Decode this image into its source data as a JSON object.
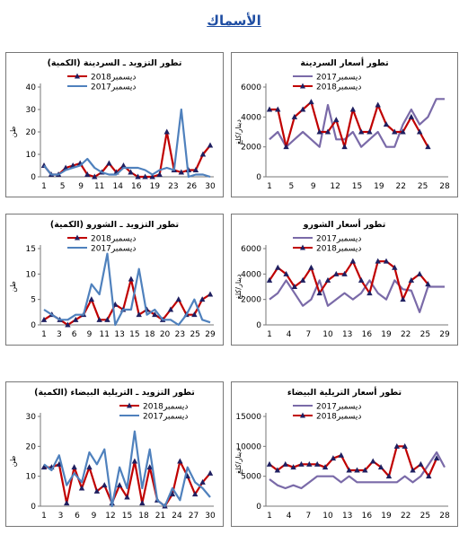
{
  "page": {
    "title": "الأسماك"
  },
  "colors": {
    "s2018": "#c00000",
    "s2017": "#4f81bd",
    "s2017_price": "#7a6aa8",
    "marker2018": "#1f1f60"
  },
  "chart_data": [
    {
      "id": "supply-sardine",
      "type": "line",
      "title": "تطور التزويد ـ السردينة (الكمية)",
      "ylabel": "طن",
      "ylim": [
        0,
        40
      ],
      "yticks": [
        0,
        10,
        20,
        30,
        40
      ],
      "xticks": [
        1,
        4,
        7,
        10,
        13,
        16,
        19,
        22,
        25,
        28
      ],
      "xtick_labels": [
        "1",
        "5",
        "9",
        "11",
        "14",
        "16",
        "19",
        "23",
        "26",
        "30"
      ],
      "legend_position": "top-left",
      "markers_2018": true,
      "series": [
        {
          "name": "ديسمبر2018",
          "key": "s2018",
          "values": [
            5,
            1,
            1,
            4,
            5,
            6,
            1,
            0,
            2,
            6,
            2,
            5,
            2,
            0,
            0,
            0,
            1,
            20,
            3,
            2,
            3,
            3,
            10,
            14
          ]
        },
        {
          "name": "ديسمبر2017",
          "key": "s2017",
          "values": [
            5,
            1,
            1,
            3,
            4,
            5,
            8,
            4,
            2,
            1,
            1,
            4,
            4,
            4,
            3,
            1,
            3,
            4,
            3,
            30,
            0,
            1,
            1,
            0
          ]
        }
      ]
    },
    {
      "id": "price-sardine",
      "type": "line",
      "title": "تطور أسعار السردينة",
      "ylabel": "دينار/كلغ",
      "ylim": [
        0,
        6000
      ],
      "yticks": [
        0,
        2000,
        4000,
        6000
      ],
      "xticks": [
        1,
        3,
        5,
        7,
        9,
        11,
        13,
        15,
        17,
        19,
        21,
        23,
        25
      ],
      "xtick_labels": [
        "1",
        "5",
        "9",
        "12",
        "15",
        "19",
        "22",
        "25",
        "28",
        "",
        "",
        "",
        ""
      ],
      "legend_position": "top-left",
      "markers_2018": true,
      "series": [
        {
          "name": "ديسمبر2017",
          "key": "s2017_price",
          "values": [
            2500,
            3000,
            2000,
            2500,
            3000,
            2500,
            2000,
            4800,
            2500,
            2500,
            3000,
            2000,
            2500,
            3000,
            2000,
            2000,
            3500,
            4500,
            3500,
            4000,
            5200,
            5200
          ]
        },
        {
          "name": "ديسمبر2018",
          "key": "s2018",
          "values": [
            4500,
            4500,
            2000,
            4000,
            4500,
            5000,
            3000,
            3000,
            3800,
            2000,
            4500,
            3000,
            3000,
            4800,
            3500,
            3000,
            3000,
            4000,
            3000,
            2000
          ]
        }
      ]
    },
    {
      "id": "supply-shoura",
      "type": "line",
      "title": "تطور التزويد ـ الشورو (الكمية)",
      "ylabel": "طن",
      "ylim": [
        0,
        15
      ],
      "yticks": [
        0,
        5,
        10,
        15
      ],
      "xticks": [
        1,
        3,
        5,
        7,
        9,
        11,
        13,
        15,
        17,
        19,
        21,
        23
      ],
      "xtick_labels": [
        "1",
        "3",
        "6",
        "9",
        "11",
        "13",
        "15",
        "18",
        "20",
        "23",
        "25",
        "29"
      ],
      "legend_position": "top-left",
      "markers_2018": true,
      "series": [
        {
          "name": "ديسمبر2018",
          "key": "s2018",
          "values": [
            1,
            2,
            1,
            0,
            1,
            2,
            5,
            1,
            1,
            4,
            3,
            9,
            2,
            3,
            2,
            1,
            3,
            5,
            2,
            2,
            5,
            6
          ]
        },
        {
          "name": "ديسمبر2017",
          "key": "s2017",
          "values": [
            3,
            2,
            1,
            1,
            2,
            2,
            8,
            6,
            14,
            0,
            3,
            3,
            11,
            2,
            3,
            1,
            1,
            0,
            2,
            5,
            1,
            0.5
          ]
        }
      ]
    },
    {
      "id": "price-shoura",
      "type": "line",
      "title": "تطور أسعار الشورو",
      "ylabel": "دينار/كلغ",
      "ylim": [
        0,
        6000
      ],
      "yticks": [
        0,
        2000,
        4000,
        6000
      ],
      "xticks": [
        1,
        3,
        5,
        7,
        9,
        11,
        13,
        15,
        17,
        19,
        21,
        23,
        25
      ],
      "xtick_labels": [
        "1",
        "4",
        "7",
        "10",
        "13",
        "16",
        "19",
        "22",
        "25",
        "29",
        "",
        "",
        ""
      ],
      "legend_position": "top-left",
      "markers_2018": true,
      "series": [
        {
          "name": "ديسمبر2017",
          "key": "s2017_price",
          "values": [
            2000,
            2500,
            3500,
            2500,
            1500,
            2000,
            3500,
            1500,
            2000,
            2500,
            2000,
            2500,
            3500,
            2500,
            2000,
            3500,
            2800,
            2700,
            1000,
            3000,
            3000,
            3000
          ]
        },
        {
          "name": "ديسمبر2018",
          "key": "s2018",
          "values": [
            3500,
            4500,
            4000,
            3000,
            3500,
            4500,
            2500,
            3500,
            4000,
            4000,
            5000,
            3500,
            2500,
            5000,
            5000,
            4500,
            2000,
            3500,
            4000,
            3200
          ]
        }
      ]
    },
    {
      "id": "supply-white",
      "type": "line",
      "title": "تطور التزويد ـ التريلية البيضاء (الكمية)",
      "ylabel": "طن",
      "ylim": [
        0,
        30
      ],
      "yticks": [
        0,
        10,
        20,
        30
      ],
      "xticks": [
        1,
        3,
        5,
        7,
        9,
        11,
        13,
        15,
        17,
        19,
        21,
        23,
        25
      ],
      "xtick_labels": [
        "1",
        "3",
        "6",
        "9",
        "12",
        "15",
        "18",
        "21",
        "24",
        "27",
        "30",
        "",
        ""
      ],
      "legend_position": "top-right",
      "markers_2018": true,
      "series": [
        {
          "name": "ديسمبر2018",
          "key": "s2018",
          "values": [
            13,
            13,
            14,
            1,
            13,
            6,
            13,
            5,
            7,
            1,
            7,
            3,
            15,
            1,
            13,
            2,
            0,
            4,
            15,
            10,
            4,
            8,
            11
          ]
        },
        {
          "name": "ديسمبر2017",
          "key": "s2017",
          "values": [
            14,
            12,
            17,
            7,
            11,
            8,
            18,
            14,
            19,
            0,
            13,
            6,
            25,
            6,
            19,
            2,
            0,
            6,
            2,
            13,
            8,
            6,
            3
          ]
        }
      ]
    },
    {
      "id": "price-white",
      "type": "line",
      "title": "تطور أسعار التريلية البيضاء",
      "ylabel": "دينار/كلغ",
      "ylim": [
        0,
        15000
      ],
      "yticks": [
        0,
        5000,
        10000,
        15000
      ],
      "xticks": [
        1,
        3,
        5,
        7,
        9,
        11,
        13,
        15,
        17,
        19,
        21,
        23,
        25
      ],
      "xtick_labels": [
        "1",
        "4",
        "7",
        "10",
        "13",
        "16",
        "19",
        "22",
        "25",
        "28",
        "",
        "",
        ""
      ],
      "legend_position": "top-left",
      "markers_2018": true,
      "series": [
        {
          "name": "ديسمبر2017",
          "key": "s2017_price",
          "values": [
            4500,
            3500,
            3000,
            3500,
            3000,
            4000,
            5000,
            5000,
            5000,
            4000,
            5000,
            4000,
            4000,
            4000,
            4000,
            4000,
            4000,
            5000,
            4000,
            5000,
            7000,
            9000,
            6500
          ]
        },
        {
          "name": "ديسمبر2018",
          "key": "s2018",
          "values": [
            7000,
            6000,
            7000,
            6500,
            7000,
            7000,
            7000,
            6500,
            8000,
            8500,
            6000,
            6000,
            6000,
            7500,
            6500,
            5000,
            10000,
            10000,
            6000,
            7000,
            5000,
            8000
          ]
        }
      ]
    }
  ]
}
